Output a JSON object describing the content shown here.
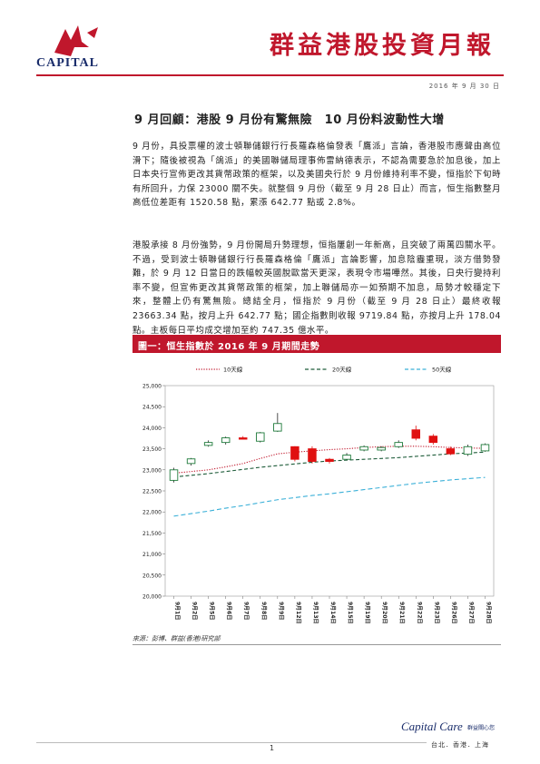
{
  "header": {
    "logo_text": "CAPITAL",
    "title": "群益港股投資月報",
    "date": "2016 年 9 月 30 日"
  },
  "article": {
    "headline": "9 月回顧：港股 9 月份有驚無險　10 月份料波動性大增",
    "paragraphs": [
      "9 月份，具投票權的波士頓聯儲銀行行長羅森格倫發表「鷹派」言論，香港股市應聲由高位滑下；隨後被視為「鴿派」的美國聯儲局理事佈雷納德表示，不認為需要急於加息後，加上日本央行宣佈更改其貨幣政策的框架，以及美國央行於 9 月份維持利率不變，恒指於下旬時有所回升，力保 23000 關不失。就整個 9 月份（截至 9 月 28 日止）而言，恒生指數整月高低位差距有 1520.58 點，累漲 642.77 點或 2.8%。",
      "港股承接 8 月份強勢，9 月份開局升勢理想，恒指屢創一年新高，且突破了兩萬四關水平。不過，受到波士頓聯儲銀行行長羅森格倫「鷹派」言論影響，加息陰霾重現，淡方借勢發難，於 9 月 12 日當日的跌幅較英國脫歐當天更深，表現令市場嘩然。其後，日央行變持利率不變，但宣佈更改其貨幣政策的框架，加上聯儲局亦一如預期不加息，局勢才較穩定下來，整體上仍有驚無險。總結全月，恒指於 9 月份（截至 9 月 28 日止）最終收報 23663.34 點，按月上升 642.77 點；國企指數則收報 9719.84 點，亦按月上升 178.04 點。主板每日平均成交增加至約 747.35 億水平。"
    ]
  },
  "figure": {
    "title": "圖一：恒生指數於 2016 年 9 月期間走勢",
    "source": "來源：彭博、群益(香港)研究部"
  },
  "chart_data": {
    "type": "candlestick",
    "title": "",
    "ylim": [
      20000,
      25000
    ],
    "yticks": [
      "25,000",
      "24,500",
      "24,000",
      "23,500",
      "23,000",
      "22,500",
      "22,000",
      "21,500",
      "21,000",
      "20,500",
      "20,000"
    ],
    "categories": [
      "9月1日",
      "9月2日",
      "9月5日",
      "9月6日",
      "9月7日",
      "9月8日",
      "9月9日",
      "9月12日",
      "9月13日",
      "9月14日",
      "9月15日",
      "9月19日",
      "9月20日",
      "9月21日",
      "9月22日",
      "9月23日",
      "9月26日",
      "9月27日",
      "9月28日"
    ],
    "candles": [
      {
        "open": 22750,
        "close": 23000,
        "high": 23050,
        "low": 22700,
        "up": true
      },
      {
        "open": 23150,
        "close": 23260,
        "high": 23280,
        "low": 23100,
        "up": true
      },
      {
        "open": 23580,
        "close": 23650,
        "high": 23700,
        "low": 23550,
        "up": true
      },
      {
        "open": 23650,
        "close": 23760,
        "high": 23790,
        "low": 23600,
        "up": true
      },
      {
        "open": 23760,
        "close": 23750,
        "high": 23800,
        "low": 23720,
        "up": false
      },
      {
        "open": 23680,
        "close": 23880,
        "high": 23900,
        "low": 23650,
        "up": true
      },
      {
        "open": 23920,
        "close": 24100,
        "high": 24350,
        "low": 23900,
        "up": true
      },
      {
        "open": 23550,
        "close": 23250,
        "high": 23560,
        "low": 23200,
        "up": false
      },
      {
        "open": 23500,
        "close": 23200,
        "high": 23560,
        "low": 23150,
        "up": false
      },
      {
        "open": 23250,
        "close": 23200,
        "high": 23280,
        "low": 23150,
        "up": false
      },
      {
        "open": 23250,
        "close": 23350,
        "high": 23400,
        "low": 23230,
        "up": true
      },
      {
        "open": 23470,
        "close": 23550,
        "high": 23580,
        "low": 23440,
        "up": true
      },
      {
        "open": 23470,
        "close": 23530,
        "high": 23560,
        "low": 23440,
        "up": true
      },
      {
        "open": 23550,
        "close": 23650,
        "high": 23700,
        "low": 23520,
        "up": true
      },
      {
        "open": 23950,
        "close": 23750,
        "high": 24050,
        "low": 23700,
        "up": false
      },
      {
        "open": 23800,
        "close": 23650,
        "high": 23850,
        "low": 23600,
        "up": false
      },
      {
        "open": 23500,
        "close": 23380,
        "high": 23550,
        "low": 23350,
        "up": false
      },
      {
        "open": 23370,
        "close": 23550,
        "high": 23600,
        "low": 23330,
        "up": true
      },
      {
        "open": 23450,
        "close": 23600,
        "high": 23630,
        "low": 23430,
        "up": true
      }
    ],
    "series": [
      {
        "name": "10天線",
        "color": "#c0172c",
        "style": "dotted",
        "values": [
          22920,
          22960,
          23000,
          23070,
          23150,
          23270,
          23380,
          23420,
          23450,
          23480,
          23500,
          23530,
          23550,
          23560,
          23560,
          23550,
          23530,
          23520,
          23510
        ]
      },
      {
        "name": "20天線",
        "color": "#1e5c3a",
        "style": "dashed",
        "values": [
          22830,
          22870,
          22910,
          22960,
          23010,
          23060,
          23100,
          23140,
          23180,
          23210,
          23230,
          23250,
          23270,
          23290,
          23320,
          23350,
          23380,
          23400,
          23420
        ]
      },
      {
        "name": "50天線",
        "color": "#3bb0d8",
        "style": "dashed",
        "values": [
          21900,
          21960,
          22020,
          22090,
          22150,
          22220,
          22290,
          22340,
          22390,
          22430,
          22480,
          22530,
          22580,
          22630,
          22680,
          22720,
          22760,
          22790,
          22820
        ]
      }
    ],
    "up_color": "#1e7a3a",
    "down_color": "#e01010",
    "legend_position": "top"
  },
  "footer": {
    "page_number": "1",
    "brand": "Capital Care",
    "brand_cn": "群益關心您",
    "cities": "台北．香港．上海"
  }
}
